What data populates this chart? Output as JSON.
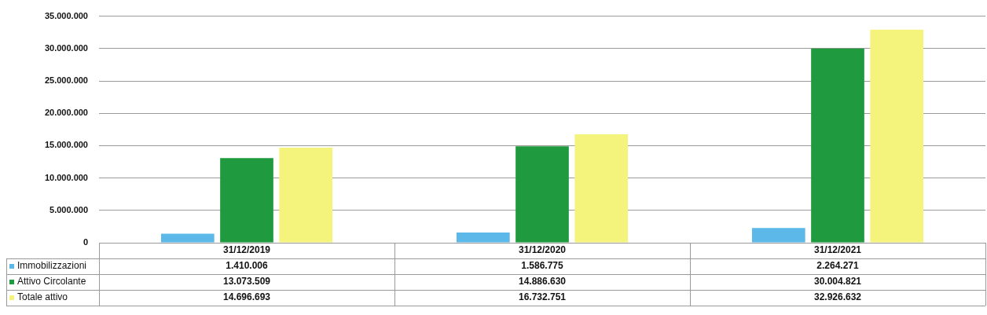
{
  "chart_data": {
    "type": "bar",
    "categories": [
      "31/12/2019",
      "31/12/2020",
      "31/12/2021"
    ],
    "series": [
      {
        "name": "Immobilizzazioni",
        "color": "#5bb8e8",
        "values": [
          1410006,
          1586775,
          2264271
        ],
        "value_labels": [
          "1.410.006",
          "1.586.775",
          "2.264.271"
        ]
      },
      {
        "name": "Attivo Circolante",
        "color": "#1f9a3e",
        "values": [
          13073509,
          14886630,
          30004821
        ],
        "value_labels": [
          "13.073.509",
          "14.886.630",
          "30.004.821"
        ]
      },
      {
        "name": "Totale attivo",
        "color": "#f4f47c",
        "values": [
          14696693,
          16732751,
          32926632
        ],
        "value_labels": [
          "14.696.693",
          "16.732.751",
          "32.926.632"
        ]
      }
    ],
    "ylim": [
      0,
      35000000
    ],
    "yticks": [
      {
        "value": 0,
        "label": "0"
      },
      {
        "value": 5000000,
        "label": "5.000.000"
      },
      {
        "value": 10000000,
        "label": "10.000.000"
      },
      {
        "value": 15000000,
        "label": "15.000.000"
      },
      {
        "value": 20000000,
        "label": "20.000.000"
      },
      {
        "value": 25000000,
        "label": "25.000.000"
      },
      {
        "value": 30000000,
        "label": "30.000.000"
      },
      {
        "value": 35000000,
        "label": "35.000.000"
      }
    ],
    "grid": "y",
    "legend": "bottom left"
  }
}
